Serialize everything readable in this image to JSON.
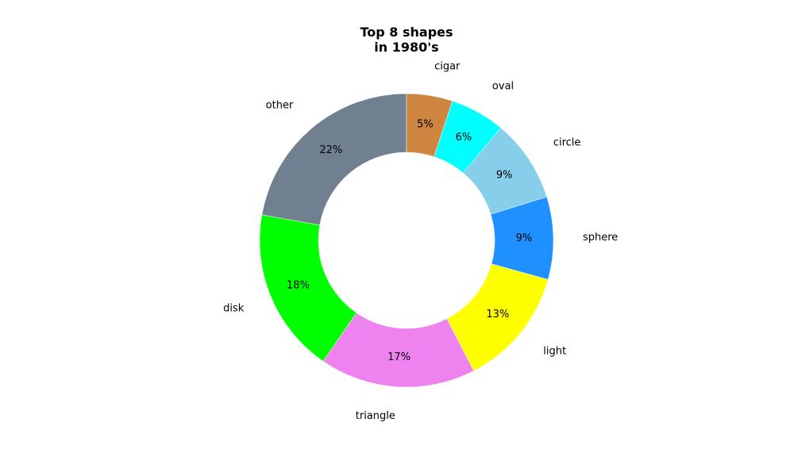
{
  "chart_data": {
    "type": "pie",
    "variant": "donut",
    "title": "Top 8 shapes\nin 1980's",
    "start_angle_deg": 90,
    "direction": "counterclockwise",
    "labels": [
      "other",
      "disk",
      "triangle",
      "light",
      "sphere",
      "circle",
      "oval",
      "cigar"
    ],
    "values": [
      22,
      18,
      17,
      13,
      9,
      9,
      6,
      5
    ],
    "value_labels": [
      "22%",
      "18%",
      "17%",
      "13%",
      "9%",
      "9%",
      "6%",
      "5%"
    ],
    "colors": [
      "#708090",
      "#00ff00",
      "#ee82ee",
      "#ffff00",
      "#1e90ff",
      "#87ceeb",
      "#00ffff",
      "#cd853f"
    ],
    "legend": "none"
  }
}
